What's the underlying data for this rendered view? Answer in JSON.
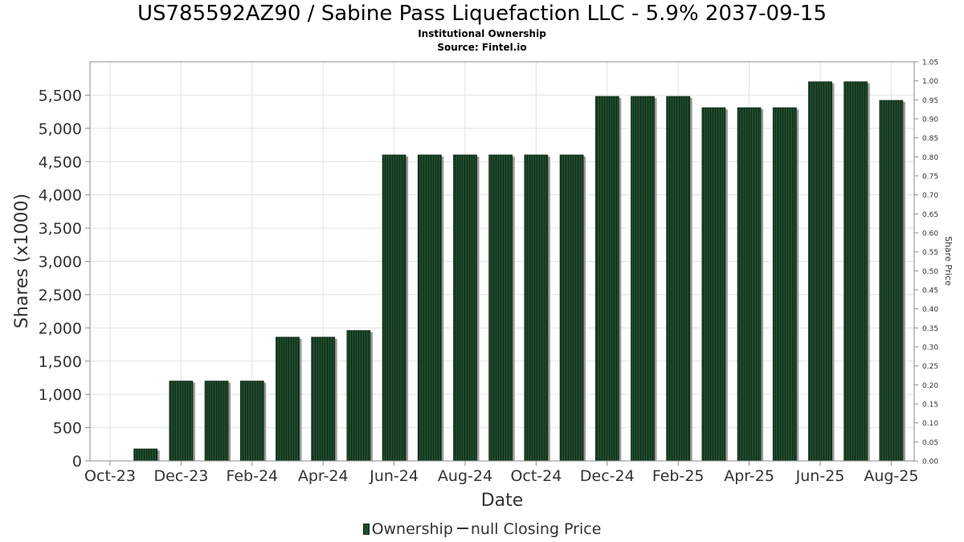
{
  "chart_data": {
    "type": "bar",
    "title": "US785592AZ90 / Sabine Pass Liquefaction LLC - 5.9% 2037-09-15",
    "subtitle": "Institutional Ownership",
    "source": "Source: Fintel.io",
    "xlabel": "Date",
    "ylabel": "Shares (x1000)",
    "y2label": "Share Price",
    "ylim": [
      0,
      6000
    ],
    "y2lim": [
      0,
      1.05
    ],
    "yticks": [
      0,
      500,
      1000,
      1500,
      2000,
      2500,
      3000,
      3500,
      4000,
      4500,
      5000,
      5500
    ],
    "yticklabels": [
      "0",
      "500",
      "1,000",
      "1,500",
      "2,000",
      "2,500",
      "3,000",
      "3,500",
      "4,000",
      "4,500",
      "5,000",
      "5,500"
    ],
    "y2ticklabels": [
      "0.00",
      "0.05",
      "0.10",
      "0.15",
      "0.20",
      "0.25",
      "0.30",
      "0.35",
      "0.40",
      "0.45",
      "0.50",
      "0.55",
      "0.60",
      "0.65",
      "0.70",
      "0.75",
      "0.80",
      "0.85",
      "0.90",
      "0.95",
      "1.00",
      "1.05"
    ],
    "xticklabels": [
      "Oct-23",
      "Dec-23",
      "Feb-24",
      "Apr-24",
      "Jun-24",
      "Aug-24",
      "Oct-24",
      "Dec-24",
      "Feb-25",
      "Apr-25",
      "Jun-25",
      "Aug-25"
    ],
    "categories": [
      "2023-11",
      "2023-12",
      "2024-01",
      "2024-02",
      "2024-03",
      "2024-04",
      "2024-05",
      "2024-06",
      "2024-07",
      "2024-08",
      "2024-09",
      "2024-10",
      "2024-11",
      "2024-12",
      "2025-01",
      "2025-02",
      "2025-03",
      "2025-04",
      "2025-05",
      "2025-06",
      "2025-07",
      "2025-08"
    ],
    "series": [
      {
        "name": "Ownership",
        "color": "#1f4a2c",
        "values": [
          180,
          1200,
          1200,
          1200,
          1860,
          1860,
          1960,
          4600,
          4600,
          4600,
          4600,
          4600,
          4600,
          5480,
          5480,
          5480,
          5310,
          5310,
          5310,
          5700,
          5700,
          5420
        ]
      }
    ],
    "legend": {
      "placement": "bottom",
      "entries": [
        "Ownership",
        "null Closing Price"
      ]
    },
    "grid": true
  }
}
